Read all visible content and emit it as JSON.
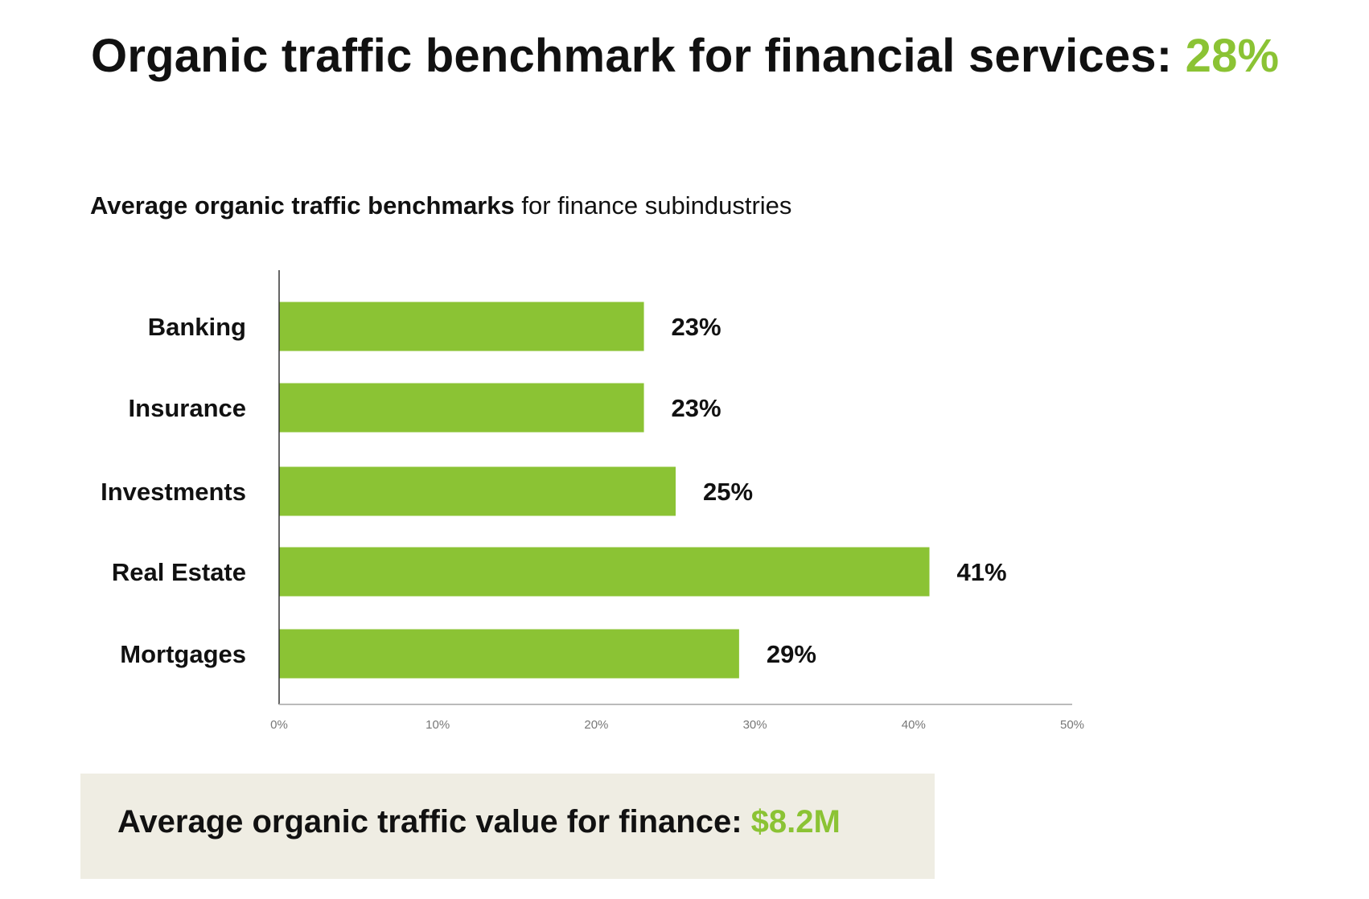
{
  "headline": {
    "text": "Organic traffic benchmark for financial services: ",
    "value": "28%"
  },
  "subtitle": {
    "bold": "Average organic traffic benchmarks",
    "rest": " for finance subindustries"
  },
  "chart_data": {
    "type": "bar",
    "orientation": "horizontal",
    "categories": [
      "Banking",
      "Insurance",
      "Investments",
      "Real Estate",
      "Mortgages"
    ],
    "values": [
      23,
      23,
      25,
      41,
      29
    ],
    "data_labels": [
      "23%",
      "23%",
      "25%",
      "41%",
      "29%"
    ],
    "xlim": [
      0,
      50
    ],
    "x_ticks": [
      0,
      10,
      20,
      30,
      40,
      50
    ],
    "x_tick_labels": [
      "0%",
      "10%",
      "20%",
      "30%",
      "40%",
      "50%"
    ],
    "grid": false,
    "bar_color": "#8bc334"
  },
  "summary": {
    "text": "Average organic traffic value for finance: ",
    "value": "$8.2M"
  },
  "colors": {
    "accent": "#8bc334",
    "text": "#111111",
    "summary_background": "#efede3",
    "axis": "#333333",
    "tick_text": "#777777"
  }
}
